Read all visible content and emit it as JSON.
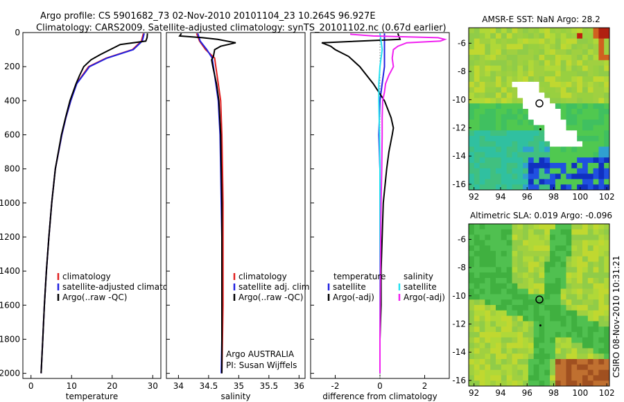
{
  "header": {
    "line1": "Argo profile: CS 5901682_73 02-Nov-2010 20101104_23 10.264S 96.927E",
    "line2": "Climatology: CARS2009. Satellite-adjusted climatology: synTS_20101102.nc (0.67d earlier)"
  },
  "stamp": "CSIRO 08-Nov-2010 10:31:21",
  "colors": {
    "climatology": "#e02020",
    "satellite": "#2020e0",
    "argo": "#000000",
    "sat_diff": "#20e0f0",
    "argo_adj_diff": "#f020f0",
    "land_white": "#ffffff"
  },
  "chart_data": [
    {
      "type": "line",
      "xlabel": "temperature",
      "ylim": [
        2030,
        0
      ],
      "xlim": [
        -2,
        32
      ],
      "yticks": [
        0,
        200,
        400,
        600,
        800,
        1000,
        1200,
        1400,
        1600,
        1800,
        2000
      ],
      "xticks": [
        0,
        10,
        20,
        30
      ],
      "legend": [
        "climatology",
        "satellite-adjusted climatology",
        "Argo(..raw -QC)"
      ],
      "legend_position": "lower-left",
      "series": [
        {
          "name": "climatology",
          "color": "#e02020",
          "depth": [
            5,
            50,
            100,
            150,
            200,
            300,
            400,
            500,
            600,
            800,
            1000,
            1200,
            1400,
            1600,
            1800,
            2000
          ],
          "values": [
            27.7,
            27.2,
            25.0,
            18.5,
            14.2,
            11.2,
            9.8,
            8.6,
            7.6,
            6.0,
            5.1,
            4.4,
            3.8,
            3.3,
            2.9,
            2.5
          ]
        },
        {
          "name": "satellite-adjusted climatology",
          "color": "#2020e0",
          "depth": [
            5,
            50,
            100,
            150,
            200,
            300,
            400,
            500,
            600,
            800,
            1000,
            1200,
            1400,
            1600,
            1800,
            2000
          ],
          "values": [
            27.9,
            27.4,
            25.2,
            18.7,
            14.4,
            11.3,
            9.8,
            8.6,
            7.6,
            6.0,
            5.1,
            4.4,
            3.8,
            3.3,
            2.9,
            2.5
          ]
        },
        {
          "name": "Argo(..raw -QC)",
          "color": "#000000",
          "depth": [
            5,
            30,
            50,
            70,
            100,
            130,
            160,
            200,
            250,
            300,
            400,
            500,
            600,
            800,
            1000,
            1200,
            1400,
            1600,
            1800,
            2000
          ],
          "values": [
            28.7,
            28.6,
            28.3,
            22.0,
            19.5,
            17.0,
            14.8,
            13.0,
            12.0,
            11.1,
            9.6,
            8.5,
            7.5,
            6.0,
            5.1,
            4.4,
            3.8,
            3.3,
            2.9,
            2.5
          ]
        }
      ]
    },
    {
      "type": "line",
      "xlabel": "salinity",
      "ylim": [
        2030,
        0
      ],
      "xlim": [
        33.8,
        36.1
      ],
      "xticks": [
        34,
        34.5,
        35,
        35.5,
        36
      ],
      "legend": [
        "climatology",
        "satellite adj. clim.",
        "Argo(..raw -QC)"
      ],
      "legend_position": "lower-right",
      "annotations": [
        "Argo AUSTRALIA",
        "PI: Susan Wijffels"
      ],
      "series": [
        {
          "name": "climatology",
          "color": "#e02020",
          "depth": [
            5,
            50,
            100,
            150,
            200,
            300,
            400,
            600,
            800,
            1000,
            1200,
            1400,
            1600,
            1800,
            2000
          ],
          "values": [
            34.3,
            34.35,
            34.45,
            34.6,
            34.62,
            34.66,
            34.7,
            34.72,
            34.73,
            34.74,
            34.74,
            34.74,
            34.74,
            34.73,
            34.72
          ]
        },
        {
          "name": "satellite adj. clim.",
          "color": "#2020e0",
          "depth": [
            5,
            50,
            100,
            150,
            200,
            300,
            400,
            600,
            800,
            1000,
            1200,
            1400,
            1600,
            1800,
            2000
          ],
          "values": [
            34.32,
            34.36,
            34.47,
            34.56,
            34.58,
            34.62,
            34.66,
            34.69,
            34.7,
            34.71,
            34.72,
            34.72,
            34.72,
            34.72,
            34.71
          ]
        },
        {
          "name": "Argo(..raw -QC)",
          "color": "#000000",
          "depth": [
            5,
            20,
            30,
            40,
            60,
            80,
            100,
            140,
            160,
            200,
            300,
            400,
            600,
            800,
            1000,
            1200,
            1400,
            1600,
            1800,
            2000
          ],
          "values": [
            34.05,
            34.02,
            34.4,
            34.65,
            34.95,
            34.7,
            34.6,
            34.58,
            34.55,
            34.57,
            34.63,
            34.67,
            34.7,
            34.71,
            34.72,
            34.72,
            34.72,
            34.72,
            34.72,
            34.72
          ]
        }
      ]
    },
    {
      "type": "line",
      "xlabel": "difference from climatology",
      "ylim": [
        2030,
        0
      ],
      "xlim": [
        -3.1,
        3.1
      ],
      "xticks": [
        -2,
        0,
        2
      ],
      "legend": [
        "temperature",
        "satellite",
        "Argo(-adj)",
        "salinity",
        "satellite",
        "Argo(-adj)"
      ],
      "legend_position": "lower-center",
      "series": [
        {
          "name": "temperature satellite",
          "color": "#2020e0",
          "depth": [
            5,
            50,
            100,
            150,
            200,
            300,
            400,
            600,
            800,
            1000,
            1200,
            1400,
            1600,
            1800,
            2000
          ],
          "values": [
            0.2,
            0.2,
            0.2,
            0.2,
            0.2,
            0.1,
            0.0,
            -0.05,
            0.0,
            0.0,
            0.0,
            0.0,
            0.0,
            0.0,
            0.0
          ]
        },
        {
          "name": "temperature Argo(-adj)",
          "color": "#000000",
          "depth": [
            5,
            40,
            60,
            80,
            100,
            140,
            200,
            300,
            400,
            500,
            560,
            600,
            700,
            800,
            1000,
            1200,
            1400,
            1600,
            1800,
            2000
          ],
          "values": [
            0.8,
            0.9,
            -2.6,
            -2.2,
            -2.0,
            -1.4,
            -0.9,
            -0.3,
            0.2,
            0.5,
            0.6,
            0.55,
            0.4,
            0.3,
            0.15,
            0.1,
            0.05,
            0.05,
            0.0,
            0.0
          ]
        },
        {
          "name": "salinity satellite",
          "color": "#20e0f0",
          "depth": [
            5,
            50,
            100,
            150,
            200,
            300,
            400,
            600,
            800,
            1000,
            1200,
            1400,
            1600,
            1800,
            2000
          ],
          "values": [
            0.0,
            0.05,
            0.1,
            0.05,
            0.0,
            -0.05,
            -0.05,
            -0.02,
            0.0,
            0.0,
            0.0,
            0.0,
            0.0,
            0.0,
            0.0
          ]
        },
        {
          "name": "salinity Argo(-adj)",
          "color": "#f020f0",
          "depth": [
            5,
            10,
            20,
            30,
            40,
            50,
            60,
            80,
            100,
            150,
            200,
            250,
            300,
            350,
            400,
            500,
            600,
            800,
            1000,
            1200,
            1400,
            1600,
            1800,
            2000
          ],
          "values": [
            -1.3,
            -1.3,
            -0.3,
            2.6,
            2.9,
            2.7,
            1.2,
            0.8,
            0.6,
            0.55,
            0.6,
            0.4,
            0.25,
            0.2,
            0.12,
            0.1,
            0.1,
            0.08,
            0.05,
            0.03,
            0.02,
            0.01,
            0.0,
            0.0
          ]
        }
      ]
    },
    {
      "type": "heatmap",
      "title": "AMSR-E SST: NaN Argo: 28.2",
      "xticks": [
        92,
        94,
        96,
        98,
        100,
        102
      ],
      "yticks": [
        -6,
        -8,
        -10,
        -12,
        -14,
        -16
      ],
      "xlim": [
        91.6,
        102.2
      ],
      "ylim": [
        -16.4,
        -4.9
      ]
    },
    {
      "type": "heatmap",
      "title": "Altimetric SLA: 0.019 Argo: -0.096",
      "xticks": [
        92,
        94,
        96,
        98,
        100,
        102
      ],
      "yticks": [
        -6,
        -8,
        -10,
        -12,
        -14,
        -16
      ],
      "xlim": [
        91.6,
        102.2
      ],
      "ylim": [
        -16.4,
        -4.9
      ]
    }
  ]
}
